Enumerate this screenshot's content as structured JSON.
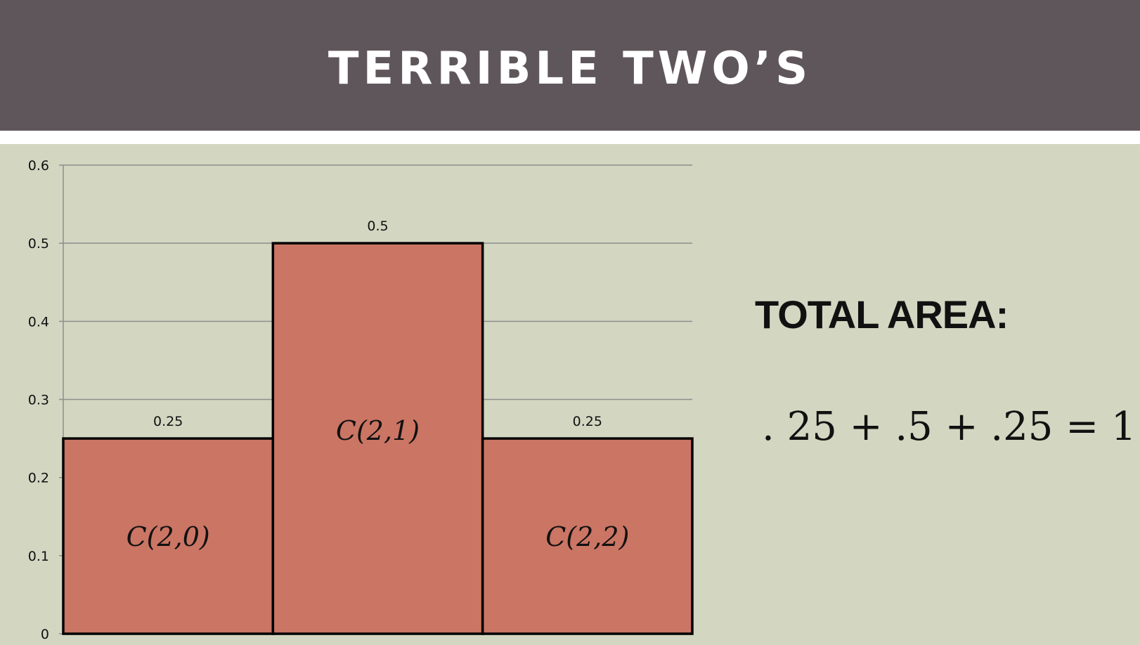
{
  "slide": {
    "title": "TERRIBLE TWO’S",
    "total_area_label": "TOTAL AREA:",
    "equation": ". 25 + .5 + .25 = 1"
  },
  "colors": {
    "title_bar": "#5f565b",
    "background": "#d3d6c1",
    "bar_fill": "#cb7564",
    "bar_stroke": "#000000",
    "gridline": "#8e8e8e"
  },
  "chart_data": {
    "type": "bar",
    "categories": [
      "C(2,0)",
      "C(2,1)",
      "C(2,2)"
    ],
    "values": [
      0.25,
      0.5,
      0.25
    ],
    "data_labels": [
      "0.25",
      "0.5",
      "0.25"
    ],
    "ylim": [
      0,
      0.6
    ],
    "yticks": [
      "0",
      "0.1",
      "0.2",
      "0.3",
      "0.4",
      "0.5",
      "0.6"
    ],
    "grid": true,
    "legend": "none"
  }
}
